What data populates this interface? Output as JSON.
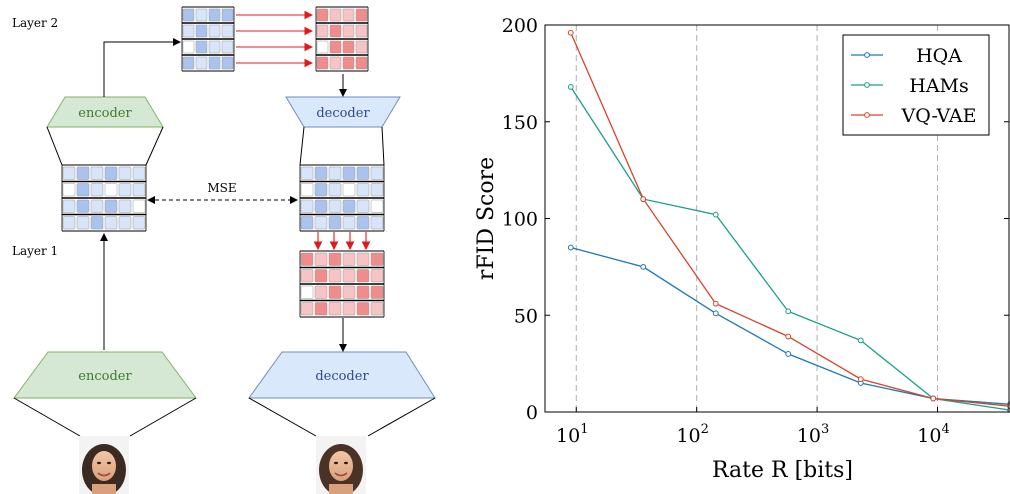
{
  "diagram": {
    "layer2_label": "Layer 2",
    "layer1_label": "Layer 1",
    "encoder_label": "encoder",
    "decoder_label": "decoder",
    "mse_label": "MSE",
    "colors": {
      "encoder_fill": "#d5e8d4",
      "encoder_stroke": "#82b366",
      "encoder_text": "#3d7a2e",
      "decoder_fill": "#dae8fc",
      "decoder_stroke": "#6c8ebf",
      "decoder_text": "#2e4a8a",
      "arrow_red": "#e31a1c"
    },
    "icons": [
      "face-photo-input",
      "face-photo-output"
    ]
  },
  "chart_data": {
    "type": "line",
    "xscale": "log",
    "xlabel": "Rate R [bits]",
    "ylabel": "rFID Score",
    "xlim": [
      5.5,
      40000
    ],
    "ylim": [
      0,
      200
    ],
    "yticks": [
      0,
      50,
      100,
      150,
      200
    ],
    "xticks": [
      10,
      100,
      1000,
      10000
    ],
    "xtick_labels": [
      {
        "base": "10",
        "exp": "1"
      },
      {
        "base": "10",
        "exp": "2"
      },
      {
        "base": "10",
        "exp": "3"
      },
      {
        "base": "10",
        "exp": "4"
      }
    ],
    "grid": "vertical-dashed",
    "legend_position": "top-right",
    "series": [
      {
        "name": "HQA",
        "color": "#1f77b4",
        "x": [
          9,
          36,
          144,
          576,
          2304,
          9216,
          40000
        ],
        "y": [
          85,
          75,
          51,
          30,
          15,
          7,
          4
        ]
      },
      {
        "name": "HAMs",
        "color": "#17a089",
        "x": [
          9,
          36,
          144,
          576,
          2304,
          9216,
          40000
        ],
        "y": [
          168,
          110,
          102,
          52,
          37,
          7,
          1
        ]
      },
      {
        "name": "VQ-VAE",
        "color": "#d6452a",
        "x": [
          9,
          36,
          144,
          576,
          2304,
          9216,
          40000
        ],
        "y": [
          196,
          110,
          56,
          39,
          17,
          7,
          3
        ]
      }
    ]
  }
}
